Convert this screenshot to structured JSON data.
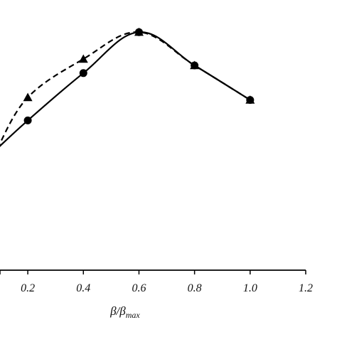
{
  "chart_data": {
    "type": "line",
    "title": "",
    "xlabel": "β/β",
    "xlabel_sub": "max",
    "ylabel": "",
    "xlim": [
      0.1,
      1.2
    ],
    "ylim": [
      0,
      1
    ],
    "x_ticks": [
      "0.2",
      "0.4",
      "0.6",
      "0.8",
      "1.0",
      "1.2"
    ],
    "grid": false,
    "legend": "none",
    "series": [
      {
        "marker": "circle",
        "style": "solid",
        "color": "#000000",
        "x": [
          0.09,
          0.2,
          0.4,
          0.6,
          0.8,
          1.0
        ],
        "y": [
          0.475,
          0.585,
          0.77,
          0.93,
          0.8,
          0.665
        ]
      },
      {
        "marker": "triangle",
        "style": "dashed",
        "color": "#000000",
        "x": [
          0.09,
          0.2,
          0.4,
          0.6,
          0.8,
          1.0
        ],
        "y": [
          0.475,
          0.675,
          0.825,
          0.93,
          0.8,
          0.665
        ]
      }
    ]
  }
}
